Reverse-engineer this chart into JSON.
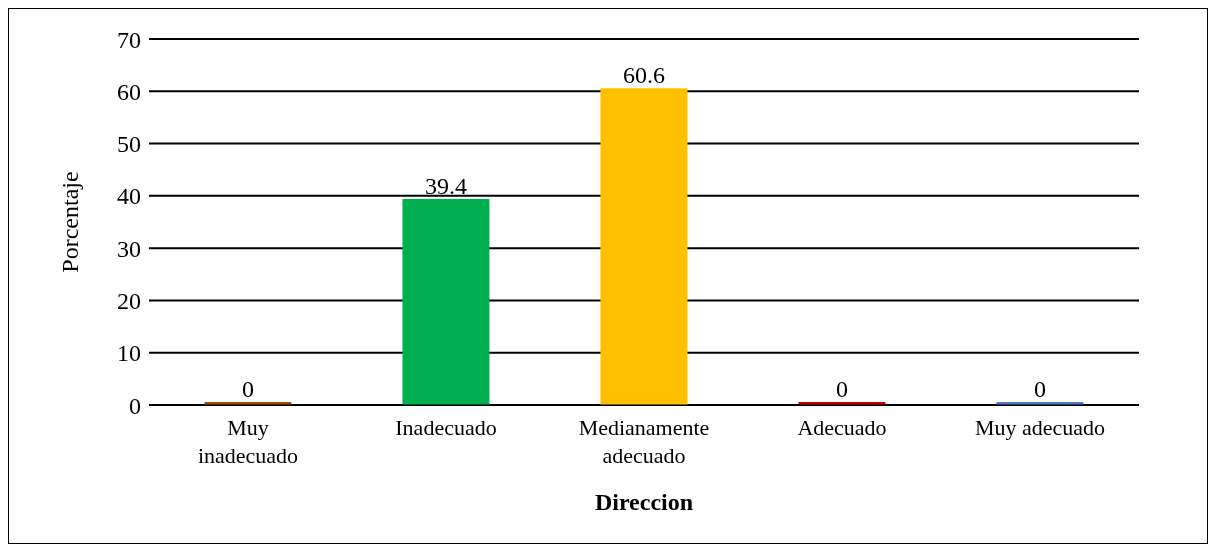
{
  "chart_data": {
    "type": "bar",
    "xlabel": "Direccion",
    "ylabel": "Porcentaje",
    "categories": [
      "Muy inadecuado",
      "Inadecuado",
      "Medianamente adecuado",
      "Adecuado",
      "Muy adecuado"
    ],
    "values": [
      0,
      39.4,
      60.6,
      0,
      0
    ],
    "colors": [
      "#9c4a0e",
      "#00b050",
      "#ffc000",
      "#c00000",
      "#4a7ebb"
    ],
    "ylim": [
      0,
      70
    ],
    "yticks": [
      0,
      10,
      20,
      30,
      40,
      50,
      60,
      70
    ],
    "grid": "y",
    "data_labels": true
  }
}
